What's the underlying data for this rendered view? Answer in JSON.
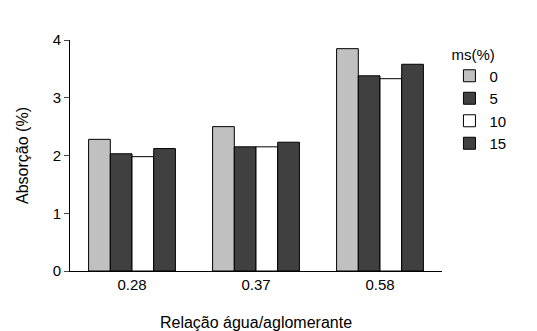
{
  "chart_data": {
    "type": "bar",
    "x_label": "Relação água/aglomerante",
    "y_label": "Absorção (%)",
    "legend_title": "ms(%)",
    "categories": [
      "0.28",
      "0.37",
      "0.58"
    ],
    "series": [
      {
        "name": "0",
        "color": "#c0c0c0",
        "values": [
          2.28,
          2.5,
          3.85
        ]
      },
      {
        "name": "5",
        "color": "#404040",
        "values": [
          2.03,
          2.15,
          3.38
        ]
      },
      {
        "name": "10",
        "color": "#ffffff",
        "values": [
          1.98,
          2.15,
          3.33
        ]
      },
      {
        "name": "15",
        "color": "#404040",
        "values": [
          2.12,
          2.23,
          3.58
        ]
      }
    ],
    "ylim": [
      0,
      4
    ],
    "yticks": [
      0,
      1,
      2,
      3,
      4
    ],
    "grid": false,
    "legend": "right"
  }
}
